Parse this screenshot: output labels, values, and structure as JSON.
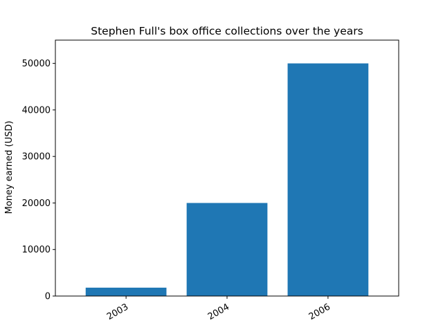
{
  "chart_data": {
    "type": "bar",
    "title": "Stephen Full's box office collections over the years",
    "xlabel": "",
    "ylabel": "Money earned (USD)",
    "categories": [
      "2003",
      "2004",
      "2006"
    ],
    "values": [
      1800,
      20000,
      50000
    ],
    "ylim": [
      0,
      55000
    ],
    "yticks": [
      "0",
      "10000",
      "20000",
      "30000",
      "40000",
      "50000"
    ],
    "bar_color": "#1f77b4",
    "grid": false,
    "x_tick_rotation_deg": 30
  }
}
